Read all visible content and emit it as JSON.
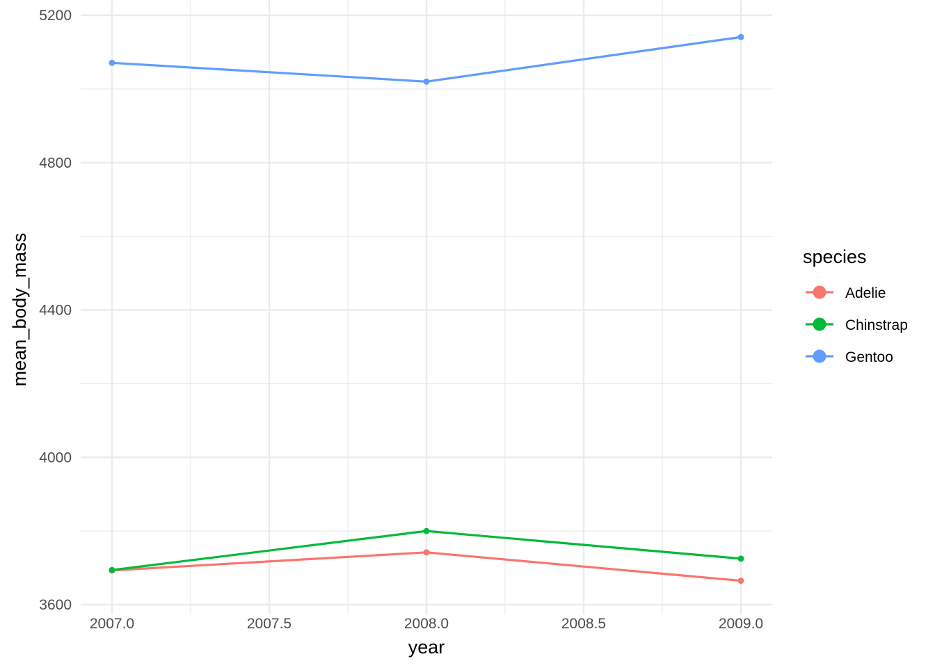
{
  "chart_data": {
    "type": "line",
    "title": "",
    "xlabel": "year",
    "ylabel": "mean_body_mass",
    "x": [
      2007,
      2008,
      2009
    ],
    "xlim": [
      2006.9,
      2009.1
    ],
    "ylim": [
      3600,
      5200
    ],
    "x_ticks": [
      2007,
      2007.5,
      2008,
      2008.5,
      2009
    ],
    "x_tick_labels": [
      "2007.0",
      "2007.5",
      "2008.0",
      "2008.5",
      "2009.0"
    ],
    "y_ticks": [
      3600,
      4000,
      4400,
      4800,
      5200
    ],
    "y_tick_labels": [
      "3600",
      "4000",
      "4400",
      "4800",
      "5200"
    ],
    "x_minor_ticks": [
      2007.25,
      2007.75,
      2008.25,
      2008.75
    ],
    "y_minor_ticks": [
      3800,
      4200,
      4600,
      5000
    ],
    "grid": true,
    "legend_title": "species",
    "legend_position": "right",
    "series": [
      {
        "name": "Adelie",
        "color": "#F8766D",
        "values": [
          3693,
          3742,
          3665
        ]
      },
      {
        "name": "Chinstrap",
        "color": "#00BA38",
        "values": [
          3694,
          3800,
          3725
        ]
      },
      {
        "name": "Gentoo",
        "color": "#619CFF",
        "values": [
          5071,
          5020,
          5141
        ]
      }
    ]
  }
}
